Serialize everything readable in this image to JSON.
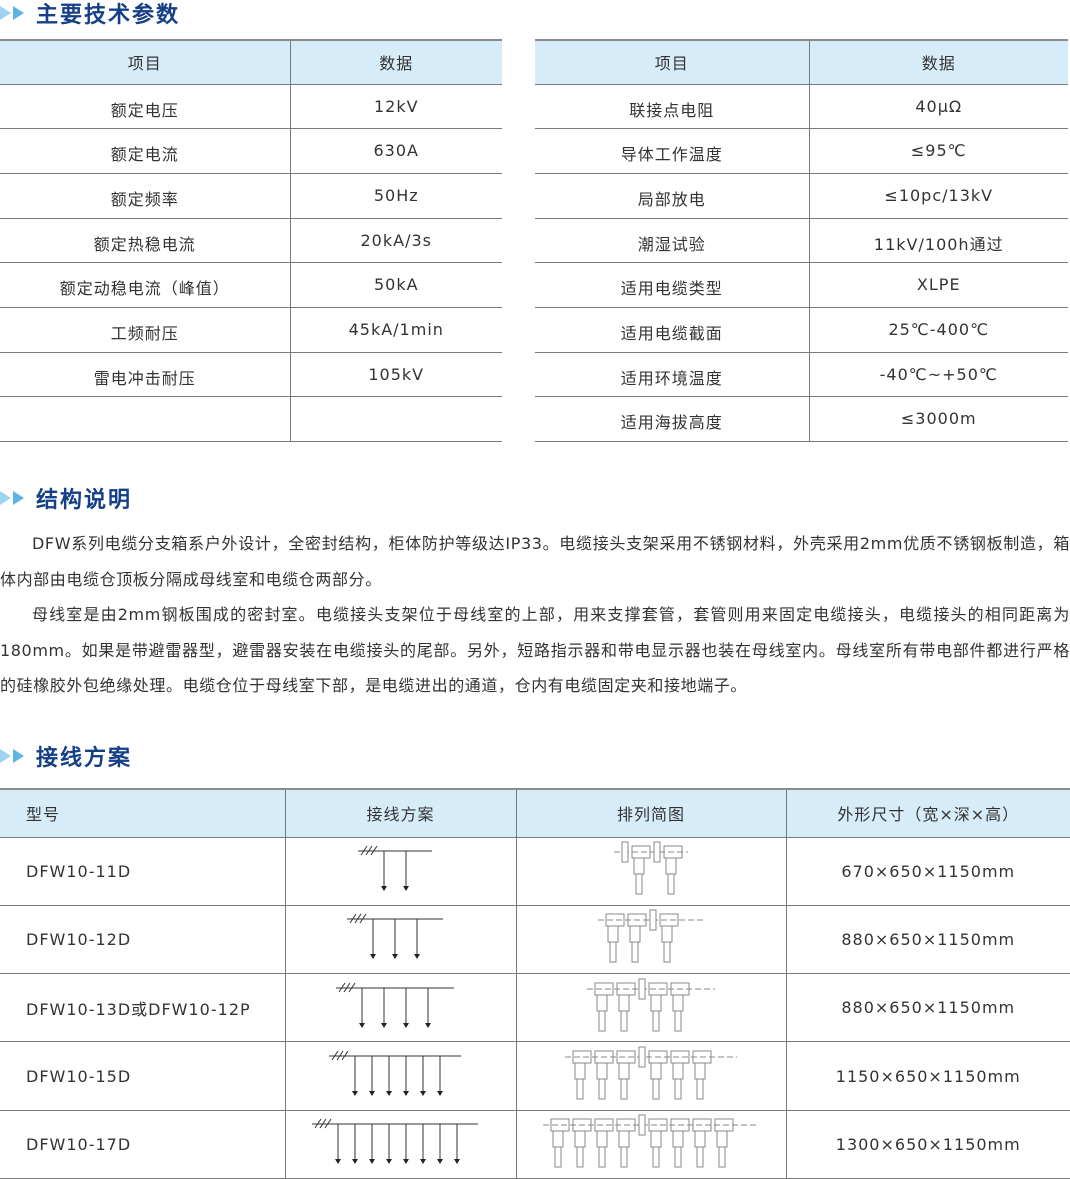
{
  "sections": {
    "params": {
      "title": "主要技术参数"
    },
    "structure": {
      "title": "结构说明"
    },
    "wiring": {
      "title": "接线方案"
    }
  },
  "params_left": {
    "headers": [
      "项目",
      "数据"
    ],
    "rows": [
      [
        "额定电压",
        "12kV"
      ],
      [
        "额定电流",
        "630A"
      ],
      [
        "额定频率",
        "50Hz"
      ],
      [
        "额定热稳电流",
        "20kA/3s"
      ],
      [
        "额定动稳电流（峰值）",
        "50kA"
      ],
      [
        "工频耐压",
        "45kA/1min"
      ],
      [
        "雷电冲击耐压",
        "105kV"
      ],
      [
        "",
        ""
      ]
    ]
  },
  "params_right": {
    "headers": [
      "项目",
      "数据"
    ],
    "rows": [
      [
        "联接点电阻",
        "40μΩ"
      ],
      [
        "导体工作温度",
        "≤95℃"
      ],
      [
        "局部放电",
        "≤10pc/13kV"
      ],
      [
        "潮湿试验",
        "11kV/100h通过"
      ],
      [
        "适用电缆类型",
        "XLPE"
      ],
      [
        "适用电缆截面",
        "25℃-400℃"
      ],
      [
        "适用环境温度",
        "-40℃~+50℃"
      ],
      [
        "适用海拔高度",
        "≤3000m"
      ]
    ]
  },
  "structure_text": [
    "DFW系列电缆分支箱系户外设计，全密封结构，柜体防护等级达IP33。电缆接头支架采用不锈钢材料，外壳采用2mm优质不锈钢板制造，箱体内部由电缆仓顶板分隔成母线室和电缆仓两部分。",
    "母线室是由2mm钢板围成的密封室。电缆接头支架位于母线室的上部，用来支撑套管，套管则用来固定电缆接头，电缆接头的相同距离为180mm。如果是带避雷器型，避雷器安装在电缆接头的尾部。另外，短路指示器和带电显示器也装在母线室内。母线室所有带电部件都进行严格的硅橡胶外包绝缘处理。电缆仓位于母线室下部，是电缆进出的通道，仓内有电缆固定夹和接地端子。"
  ],
  "wiring": {
    "headers": [
      "型号",
      "接线方案",
      "排列简图",
      "外形尺寸（宽×深×高）"
    ],
    "rows": [
      {
        "model": "DFW10-11D",
        "outlets": 2,
        "size": "670×650×1150mm"
      },
      {
        "model": "DFW10-12D",
        "outlets": 3,
        "size": "880×650×1150mm"
      },
      {
        "model": "DFW10-13D或DFW10-12P",
        "outlets": 4,
        "size": "880×650×1150mm"
      },
      {
        "model": "DFW10-15D",
        "outlets": 6,
        "size": "1150×650×1150mm"
      },
      {
        "model": "DFW10-17D",
        "outlets": 8,
        "size": "1300×650×1150mm"
      }
    ]
  }
}
